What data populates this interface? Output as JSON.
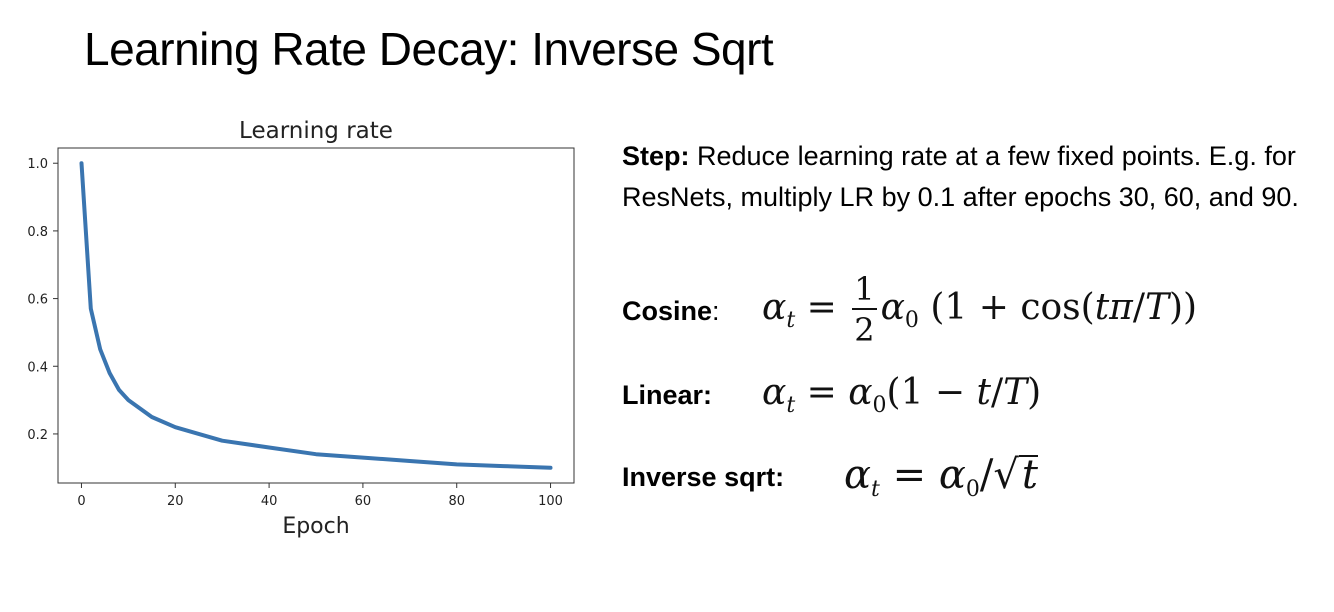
{
  "slide": {
    "title": "Learning Rate Decay: Inverse Sqrt"
  },
  "text": {
    "step_label": "Step:",
    "step_body": " Reduce learning rate at a few fixed points. E.g. for ResNets, multiply LR by 0.1 after epochs 30, 60, and 90.",
    "cosine_label": "Cosine",
    "cosine_colon": ":",
    "linear_label": "Linear:",
    "invsqrt_label": "Inverse sqrt:"
  },
  "formulas": {
    "cosine": "αt = 1/2 α0 (1 + cos(tπ/T))",
    "linear": "αt = α0(1 − t/T)",
    "inverse_sqrt": "αt = α0/√t"
  },
  "chart_data": {
    "type": "line",
    "title": "Learning rate",
    "xlabel": "Epoch",
    "ylabel": "",
    "xlim": [
      -5,
      105
    ],
    "ylim": [
      0.055,
      1.045
    ],
    "xticks": [
      0,
      20,
      40,
      60,
      80,
      100
    ],
    "yticks": [
      0.2,
      0.4,
      0.6,
      0.8,
      1.0
    ],
    "ytick_labels": [
      "0.2",
      "0.4",
      "0.6",
      "0.8",
      "1.0"
    ],
    "series": [
      {
        "color": "#3a75b0",
        "x": [
          0,
          2,
          4,
          6,
          8,
          10,
          15,
          20,
          25,
          30,
          40,
          50,
          60,
          70,
          80,
          90,
          100
        ],
        "y": [
          1.0,
          0.57,
          0.45,
          0.38,
          0.33,
          0.3,
          0.25,
          0.22,
          0.2,
          0.18,
          0.16,
          0.14,
          0.13,
          0.12,
          0.11,
          0.105,
          0.1
        ]
      }
    ]
  }
}
